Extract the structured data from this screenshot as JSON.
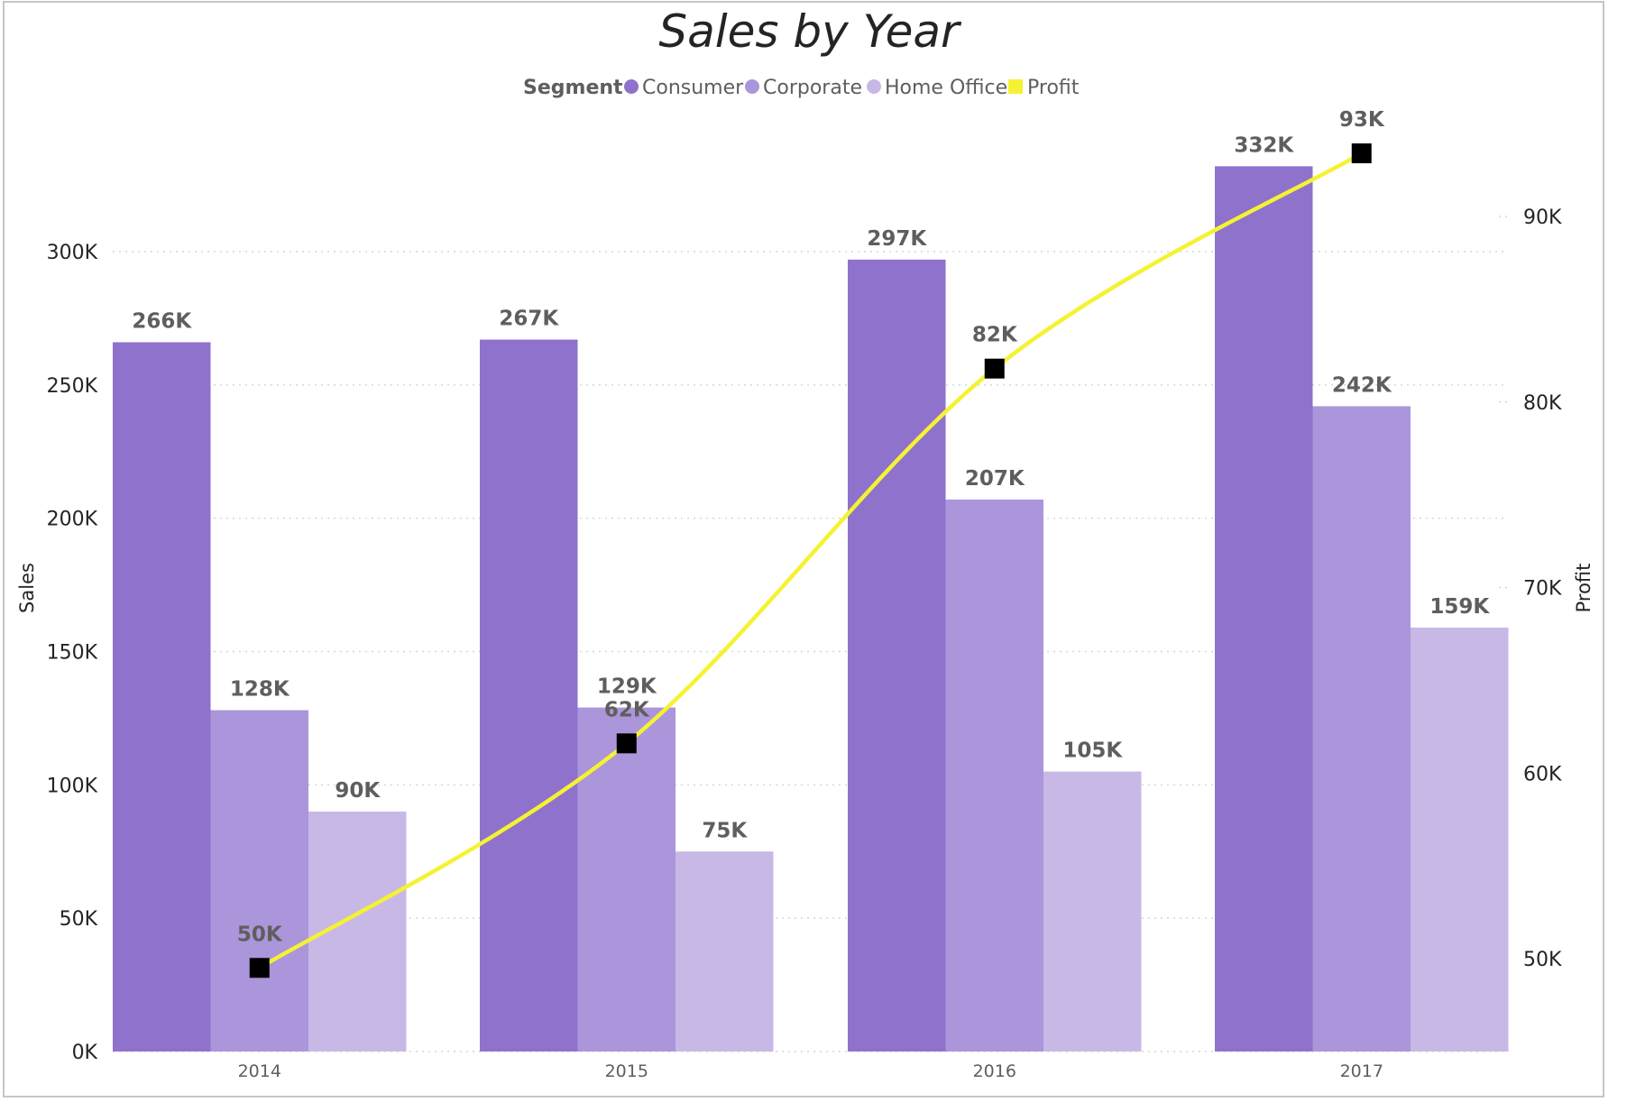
{
  "chart_data": {
    "type": "bar",
    "title": "Sales by Year",
    "legend_title": "Segment",
    "legend_position": "top-center",
    "categories": [
      "2014",
      "2015",
      "2016",
      "2017"
    ],
    "series": [
      {
        "name": "Consumer",
        "values": [
          266,
          267,
          297,
          332
        ],
        "labels": [
          "266K",
          "267K",
          "297K",
          "332K"
        ],
        "color": "#8f72cc"
      },
      {
        "name": "Corporate",
        "values": [
          128,
          129,
          207,
          242
        ],
        "labels": [
          "128K",
          "129K",
          "207K",
          "242K"
        ],
        "color": "#ab95db"
      },
      {
        "name": "Home Office",
        "values": [
          90,
          75,
          105,
          159
        ],
        "labels": [
          "90K",
          "75K",
          "105K",
          "159K"
        ],
        "color": "#c8b8e6"
      }
    ],
    "line_series": {
      "name": "Profit",
      "values": [
        49.5,
        61.6,
        81.8,
        93.4
      ],
      "labels": [
        "50K",
        "62K",
        "82K",
        "93K"
      ],
      "color": "#f5f233",
      "marker_color": "#000000"
    },
    "ylabel": "Sales",
    "y2label": "Profit",
    "ylim": [
      0,
      300
    ],
    "yticks": [
      0,
      50,
      100,
      150,
      200,
      250,
      300
    ],
    "ytick_labels": [
      "0K",
      "50K",
      "100K",
      "150K",
      "200K",
      "250K",
      "300K"
    ],
    "y2lim": [
      50,
      90
    ],
    "y2ticks": [
      50,
      60,
      70,
      80,
      90
    ],
    "y2tick_labels": [
      "50K",
      "60K",
      "70K",
      "80K",
      "90K"
    ],
    "grid": true
  }
}
